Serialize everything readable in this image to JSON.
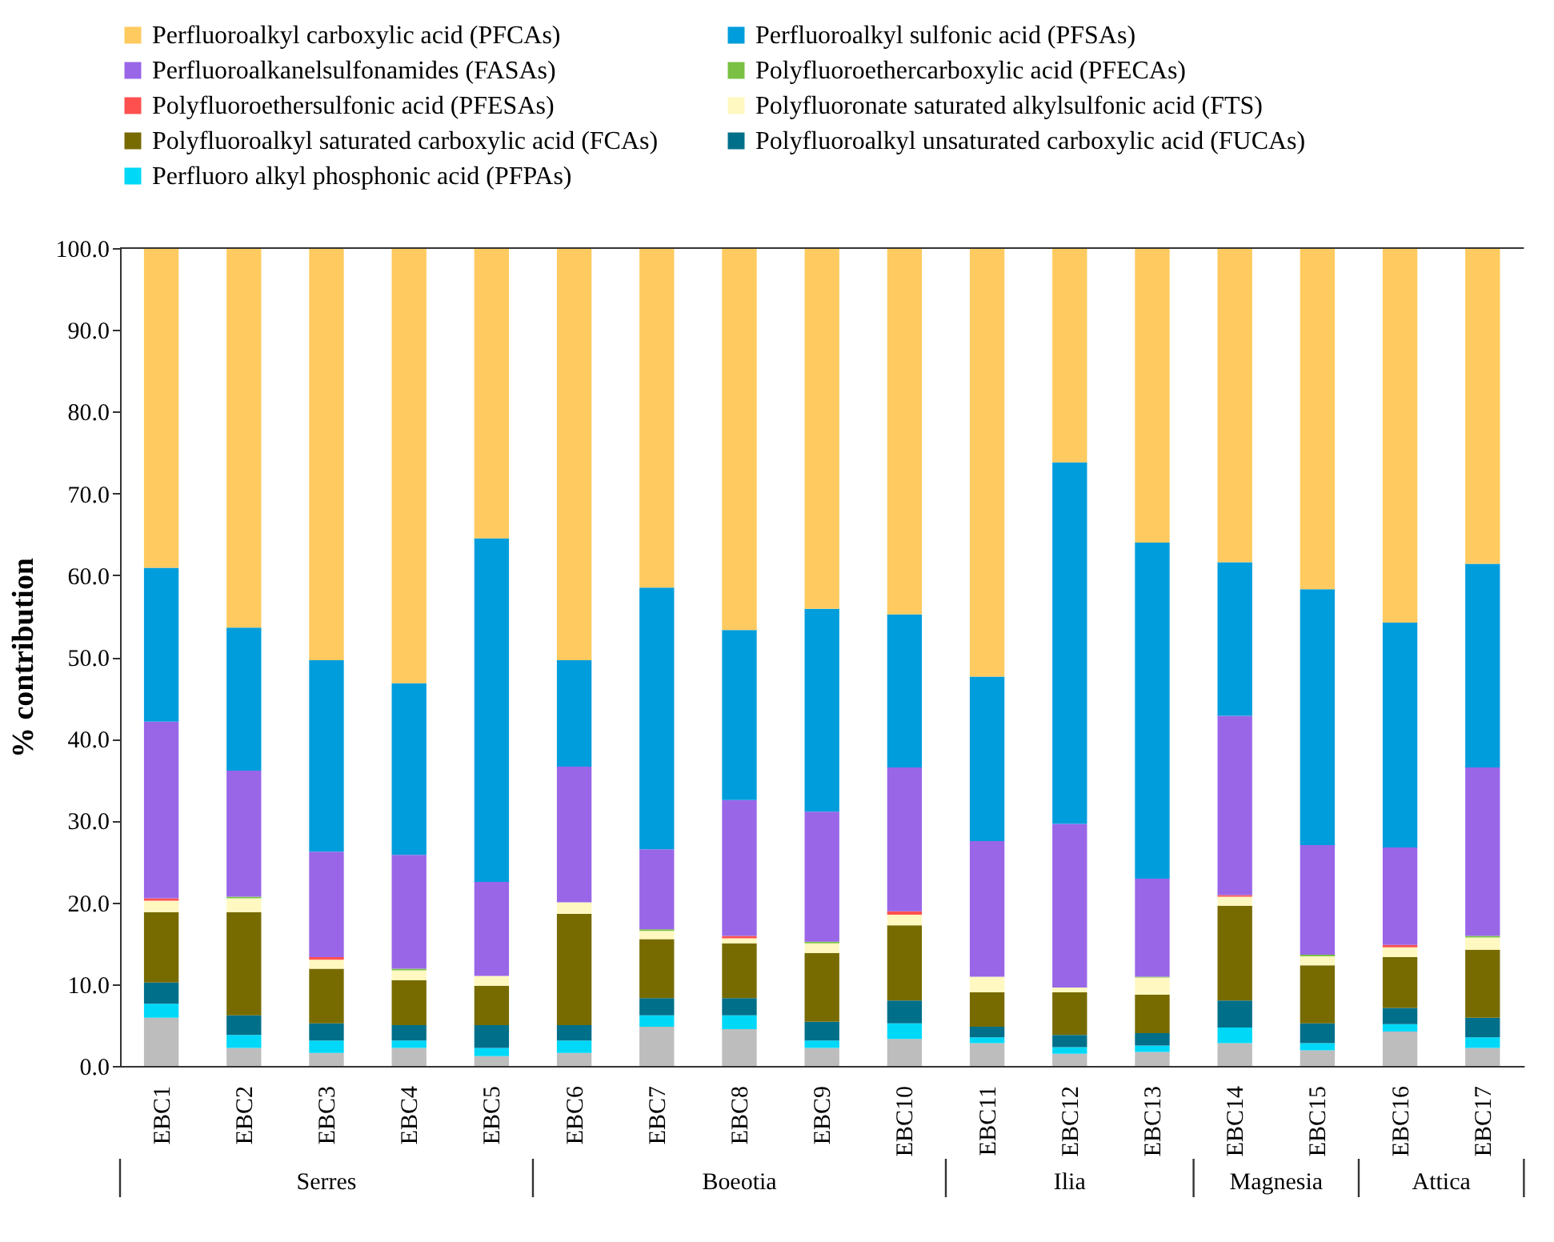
{
  "chart_data": {
    "type": "bar",
    "stacked": true,
    "ylabel": "% contribution",
    "legend": "top",
    "categories": [
      "EBC1",
      "EBC2",
      "EBC3",
      "EBC4",
      "EBC5",
      "EBC6",
      "EBC7",
      "EBC8",
      "EBC9",
      "EBC10",
      "EBC11",
      "EBC12",
      "EBC13",
      "EBC14",
      "EBC15",
      "EBC16",
      "EBC17"
    ],
    "ylim": [
      0,
      100
    ],
    "yticks": [
      {
        "value": 0,
        "label": "0.0"
      },
      {
        "value": 10,
        "label": "10.0"
      },
      {
        "value": 20,
        "label": "20.0"
      },
      {
        "value": 30,
        "label": "30.0"
      },
      {
        "value": 40,
        "label": "40.0"
      },
      {
        "value": 50,
        "label": "50.0"
      },
      {
        "value": 60,
        "label": "60.0"
      },
      {
        "value": 70,
        "label": "70.0"
      },
      {
        "value": 80,
        "label": "80.0"
      },
      {
        "value": 90,
        "label": "90.0"
      },
      {
        "value": 100,
        "label": "100.0"
      }
    ],
    "series": [
      {
        "color": "#bdbdbd",
        "values": [
          5.9,
          2.2,
          1.6,
          2.2,
          1.2,
          1.6,
          4.8,
          4.5,
          2.2,
          3.3,
          2.8,
          1.5,
          1.7,
          2.8,
          1.9,
          4.2,
          2.2
        ]
      },
      {
        "name": "Perfluoro alkyl phosphonic acid (PFPAs)",
        "color": "#00d8f8",
        "values": [
          1.7,
          1.6,
          1.5,
          0.9,
          1.0,
          1.5,
          1.4,
          1.7,
          0.9,
          1.9,
          0.7,
          0.8,
          0.8,
          1.9,
          0.9,
          0.9,
          1.3
        ]
      },
      {
        "name": "Polyfluoroalkyl unsaturated carboxylic acid (FUCAs)",
        "color": "#006f8a",
        "values": [
          2.6,
          2.4,
          2.1,
          1.9,
          2.8,
          1.9,
          2.1,
          2.1,
          2.3,
          2.8,
          1.3,
          1.5,
          1.5,
          3.3,
          2.4,
          2.0,
          2.4
        ]
      },
      {
        "name": "Polyfluoroalkyl saturated carboxylic acid (FCAs)",
        "color": "#776b00",
        "values": [
          8.6,
          12.6,
          6.7,
          5.5,
          4.8,
          13.6,
          7.2,
          6.7,
          8.4,
          9.2,
          4.2,
          5.2,
          4.7,
          11.6,
          7.1,
          6.2,
          8.3
        ]
      },
      {
        "name": "Polyfluoronate saturated alkylsulfonic acid (FTS)",
        "color": "#fff8c0",
        "values": [
          1.4,
          1.7,
          1.1,
          1.2,
          1.2,
          1.4,
          1.0,
          0.6,
          1.2,
          1.3,
          1.9,
          0.6,
          2.1,
          1.1,
          1.1,
          1.2,
          1.5
        ]
      },
      {
        "name": "Polyfluoroethersulfonic acid (PFESAs)",
        "color": "#ff5050",
        "values": [
          0.3,
          0,
          0.3,
          0,
          0,
          0,
          0,
          0.3,
          0,
          0.4,
          0,
          0,
          0,
          0.2,
          0,
          0.3,
          0
        ]
      },
      {
        "name": "Polyfluoroethercarboxylic acid (PFECAs)",
        "color": "#7ac143",
        "values": [
          0,
          0.2,
          0,
          0.2,
          0,
          0,
          0.2,
          0,
          0.2,
          0,
          0,
          0,
          0.1,
          0,
          0.2,
          0,
          0.2
        ]
      },
      {
        "name": "Perfluoroalkanelsulfonamides (FASAs)",
        "color": "#9966e8",
        "values": [
          21.6,
          15.4,
          12.9,
          13.9,
          11.5,
          16.6,
          9.8,
          16.6,
          15.9,
          17.6,
          16.6,
          20.0,
          12.0,
          21.9,
          13.4,
          11.9,
          20.6
        ]
      },
      {
        "name": "Perfluoroalkyl sulfonic acid  (PFSAs)",
        "color": "#009ddc",
        "values": [
          18.8,
          17.5,
          23.4,
          21.0,
          42.0,
          13.0,
          32.0,
          20.8,
          24.8,
          18.7,
          20.1,
          44.2,
          41.1,
          18.8,
          31.3,
          27.5,
          24.9
        ]
      },
      {
        "name": "Perfluoroalkyl carboxylic acid (PFCAs)",
        "color": "#ffca5f",
        "values": [
          39.1,
          46.4,
          50.4,
          53.2,
          35.5,
          50.4,
          41.5,
          46.7,
          44.1,
          44.8,
          52.4,
          26.2,
          36.0,
          38.4,
          41.7,
          45.8,
          38.6
        ]
      }
    ],
    "annotations": [
      "Serres",
      "Boeotia",
      "Ilia",
      "Magnesia",
      "Attica"
    ]
  }
}
